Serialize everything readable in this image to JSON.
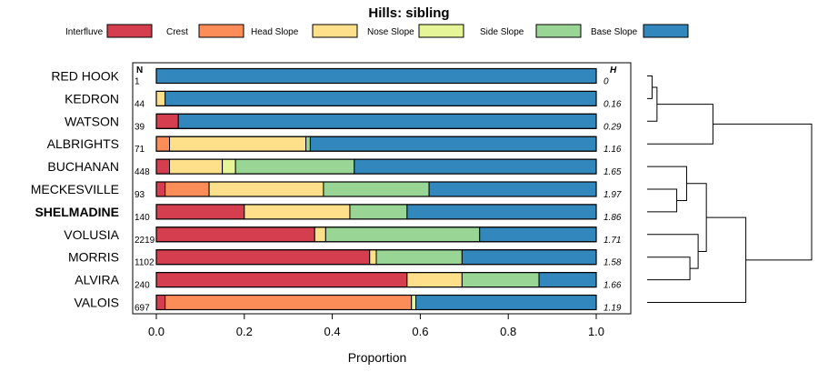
{
  "chart_data": {
    "type": "bar",
    "orientation": "horizontal",
    "stacked": true,
    "title": "Hills: sibling",
    "xlabel": "Proportion",
    "xlim": [
      0,
      1
    ],
    "xticks": [
      "0.0",
      "0.2",
      "0.4",
      "0.6",
      "0.8",
      "1.0"
    ],
    "n_header": "N",
    "h_header": "H",
    "bold_row": "SHELMADINE",
    "series": [
      {
        "name": "Interfluve",
        "color": "#D53E4F"
      },
      {
        "name": "Crest",
        "color": "#FC8D59"
      },
      {
        "name": "Head Slope",
        "color": "#FEE08B"
      },
      {
        "name": "Nose Slope",
        "color": "#E6F598"
      },
      {
        "name": "Side Slope",
        "color": "#99D594"
      },
      {
        "name": "Base Slope",
        "color": "#3288BD"
      }
    ],
    "rows": [
      {
        "label": "RED HOOK",
        "n": "1",
        "h": "0",
        "values": [
          0,
          0,
          0,
          0,
          0,
          1
        ]
      },
      {
        "label": "KEDRON",
        "n": "44",
        "h": "0.16",
        "values": [
          0,
          0,
          0.02,
          0,
          0,
          0.98
        ]
      },
      {
        "label": "WATSON",
        "n": "39",
        "h": "0.29",
        "values": [
          0.05,
          0,
          0,
          0,
          0,
          0.95
        ]
      },
      {
        "label": "ALBRIGHTS",
        "n": "71",
        "h": "1.16",
        "values": [
          0,
          0.03,
          0.31,
          0,
          0.01,
          0.65
        ]
      },
      {
        "label": "BUCHANAN",
        "n": "448",
        "h": "1.65",
        "values": [
          0.03,
          0,
          0.12,
          0.03,
          0.27,
          0.55
        ]
      },
      {
        "label": "MECKESVILLE",
        "n": "93",
        "h": "1.97",
        "values": [
          0.02,
          0.1,
          0.26,
          0,
          0.24,
          0.38
        ]
      },
      {
        "label": "SHELMADINE",
        "n": "140",
        "h": "1.86",
        "values": [
          0.2,
          0,
          0.24,
          0,
          0.13,
          0.43
        ]
      },
      {
        "label": "VOLUSIA",
        "n": "2219",
        "h": "1.71",
        "values": [
          0.36,
          0,
          0.025,
          0,
          0.35,
          0.265
        ]
      },
      {
        "label": "MORRIS",
        "n": "1102",
        "h": "1.58",
        "values": [
          0.485,
          0,
          0.015,
          0,
          0.195,
          0.305
        ]
      },
      {
        "label": "ALVIRA",
        "n": "240",
        "h": "1.66",
        "values": [
          0.57,
          0,
          0.125,
          0,
          0.175,
          0.13
        ]
      },
      {
        "label": "VALOIS",
        "n": "697",
        "h": "1.19",
        "values": [
          0.02,
          0.56,
          0,
          0.01,
          0,
          0.41
        ]
      }
    ],
    "dendrogram": {
      "leaf_order": [
        "RED HOOK",
        "KEDRON",
        "WATSON",
        "ALBRIGHTS",
        "BUCHANAN",
        "MECKESVILLE",
        "SHELMADINE",
        "VOLUSIA",
        "MORRIS",
        "ALVIRA",
        "VALOIS"
      ],
      "merges": [
        {
          "a": 0,
          "b": 1,
          "height": 0.03
        },
        {
          "a": 11,
          "b": 2,
          "height": 0.06
        },
        {
          "a": 12,
          "b": 3,
          "height": 0.4
        },
        {
          "a": 5,
          "b": 6,
          "height": 0.18
        },
        {
          "a": 4,
          "b": 14,
          "height": 0.24
        },
        {
          "a": 8,
          "b": 9,
          "height": 0.26
        },
        {
          "a": 7,
          "b": 16,
          "height": 0.31
        },
        {
          "a": 15,
          "b": 17,
          "height": 0.36
        },
        {
          "a": 18,
          "b": 10,
          "height": 0.6
        },
        {
          "a": 13,
          "b": 19,
          "height": 1.0
        }
      ]
    }
  }
}
